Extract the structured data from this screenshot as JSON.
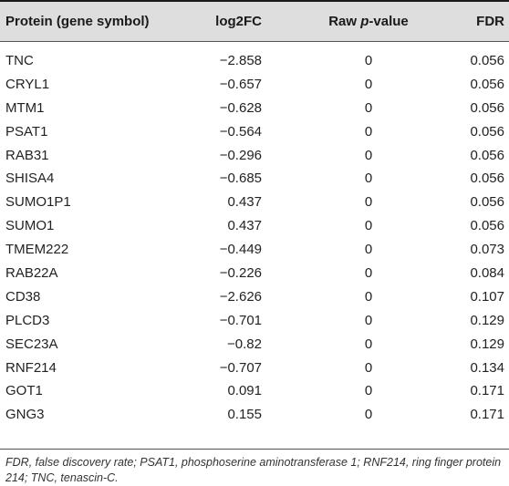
{
  "table": {
    "headers": {
      "protein": "Protein (gene symbol)",
      "log2fc": "log2FC",
      "raw_prefix": "Raw ",
      "raw_p": "p",
      "raw_suffix": "-value",
      "fdr": "FDR"
    },
    "rows": [
      {
        "protein": "TNC",
        "log2fc": "−2.858",
        "raw": "0",
        "fdr": "0.056"
      },
      {
        "protein": "CRYL1",
        "log2fc": "−0.657",
        "raw": "0",
        "fdr": "0.056"
      },
      {
        "protein": "MTM1",
        "log2fc": "−0.628",
        "raw": "0",
        "fdr": "0.056"
      },
      {
        "protein": "PSAT1",
        "log2fc": "−0.564",
        "raw": "0",
        "fdr": "0.056"
      },
      {
        "protein": "RAB31",
        "log2fc": "−0.296",
        "raw": "0",
        "fdr": "0.056"
      },
      {
        "protein": "SHISA4",
        "log2fc": "−0.685",
        "raw": "0",
        "fdr": "0.056"
      },
      {
        "protein": "SUMO1P1",
        "log2fc": "0.437",
        "raw": "0",
        "fdr": "0.056"
      },
      {
        "protein": "SUMO1",
        "log2fc": "0.437",
        "raw": "0",
        "fdr": "0.056"
      },
      {
        "protein": "TMEM222",
        "log2fc": "−0.449",
        "raw": "0",
        "fdr": "0.073"
      },
      {
        "protein": "RAB22A",
        "log2fc": "−0.226",
        "raw": "0",
        "fdr": "0.084"
      },
      {
        "protein": "CD38",
        "log2fc": "−2.626",
        "raw": "0",
        "fdr": "0.107"
      },
      {
        "protein": "PLCD3",
        "log2fc": "−0.701",
        "raw": "0",
        "fdr": "0.129"
      },
      {
        "protein": "SEC23A",
        "log2fc": "−0.82",
        "raw": "0",
        "fdr": "0.129"
      },
      {
        "protein": "RNF214",
        "log2fc": "−0.707",
        "raw": "0",
        "fdr": "0.134"
      },
      {
        "protein": "GOT1",
        "log2fc": "0.091",
        "raw": "0",
        "fdr": "0.171"
      },
      {
        "protein": "GNG3",
        "log2fc": "0.155",
        "raw": "0",
        "fdr": "0.171"
      }
    ],
    "footnote": "FDR, false discovery rate; PSAT1, phosphoserine aminotransferase 1; RNF214, ring finger protein 214; TNC, tenascin-C."
  }
}
